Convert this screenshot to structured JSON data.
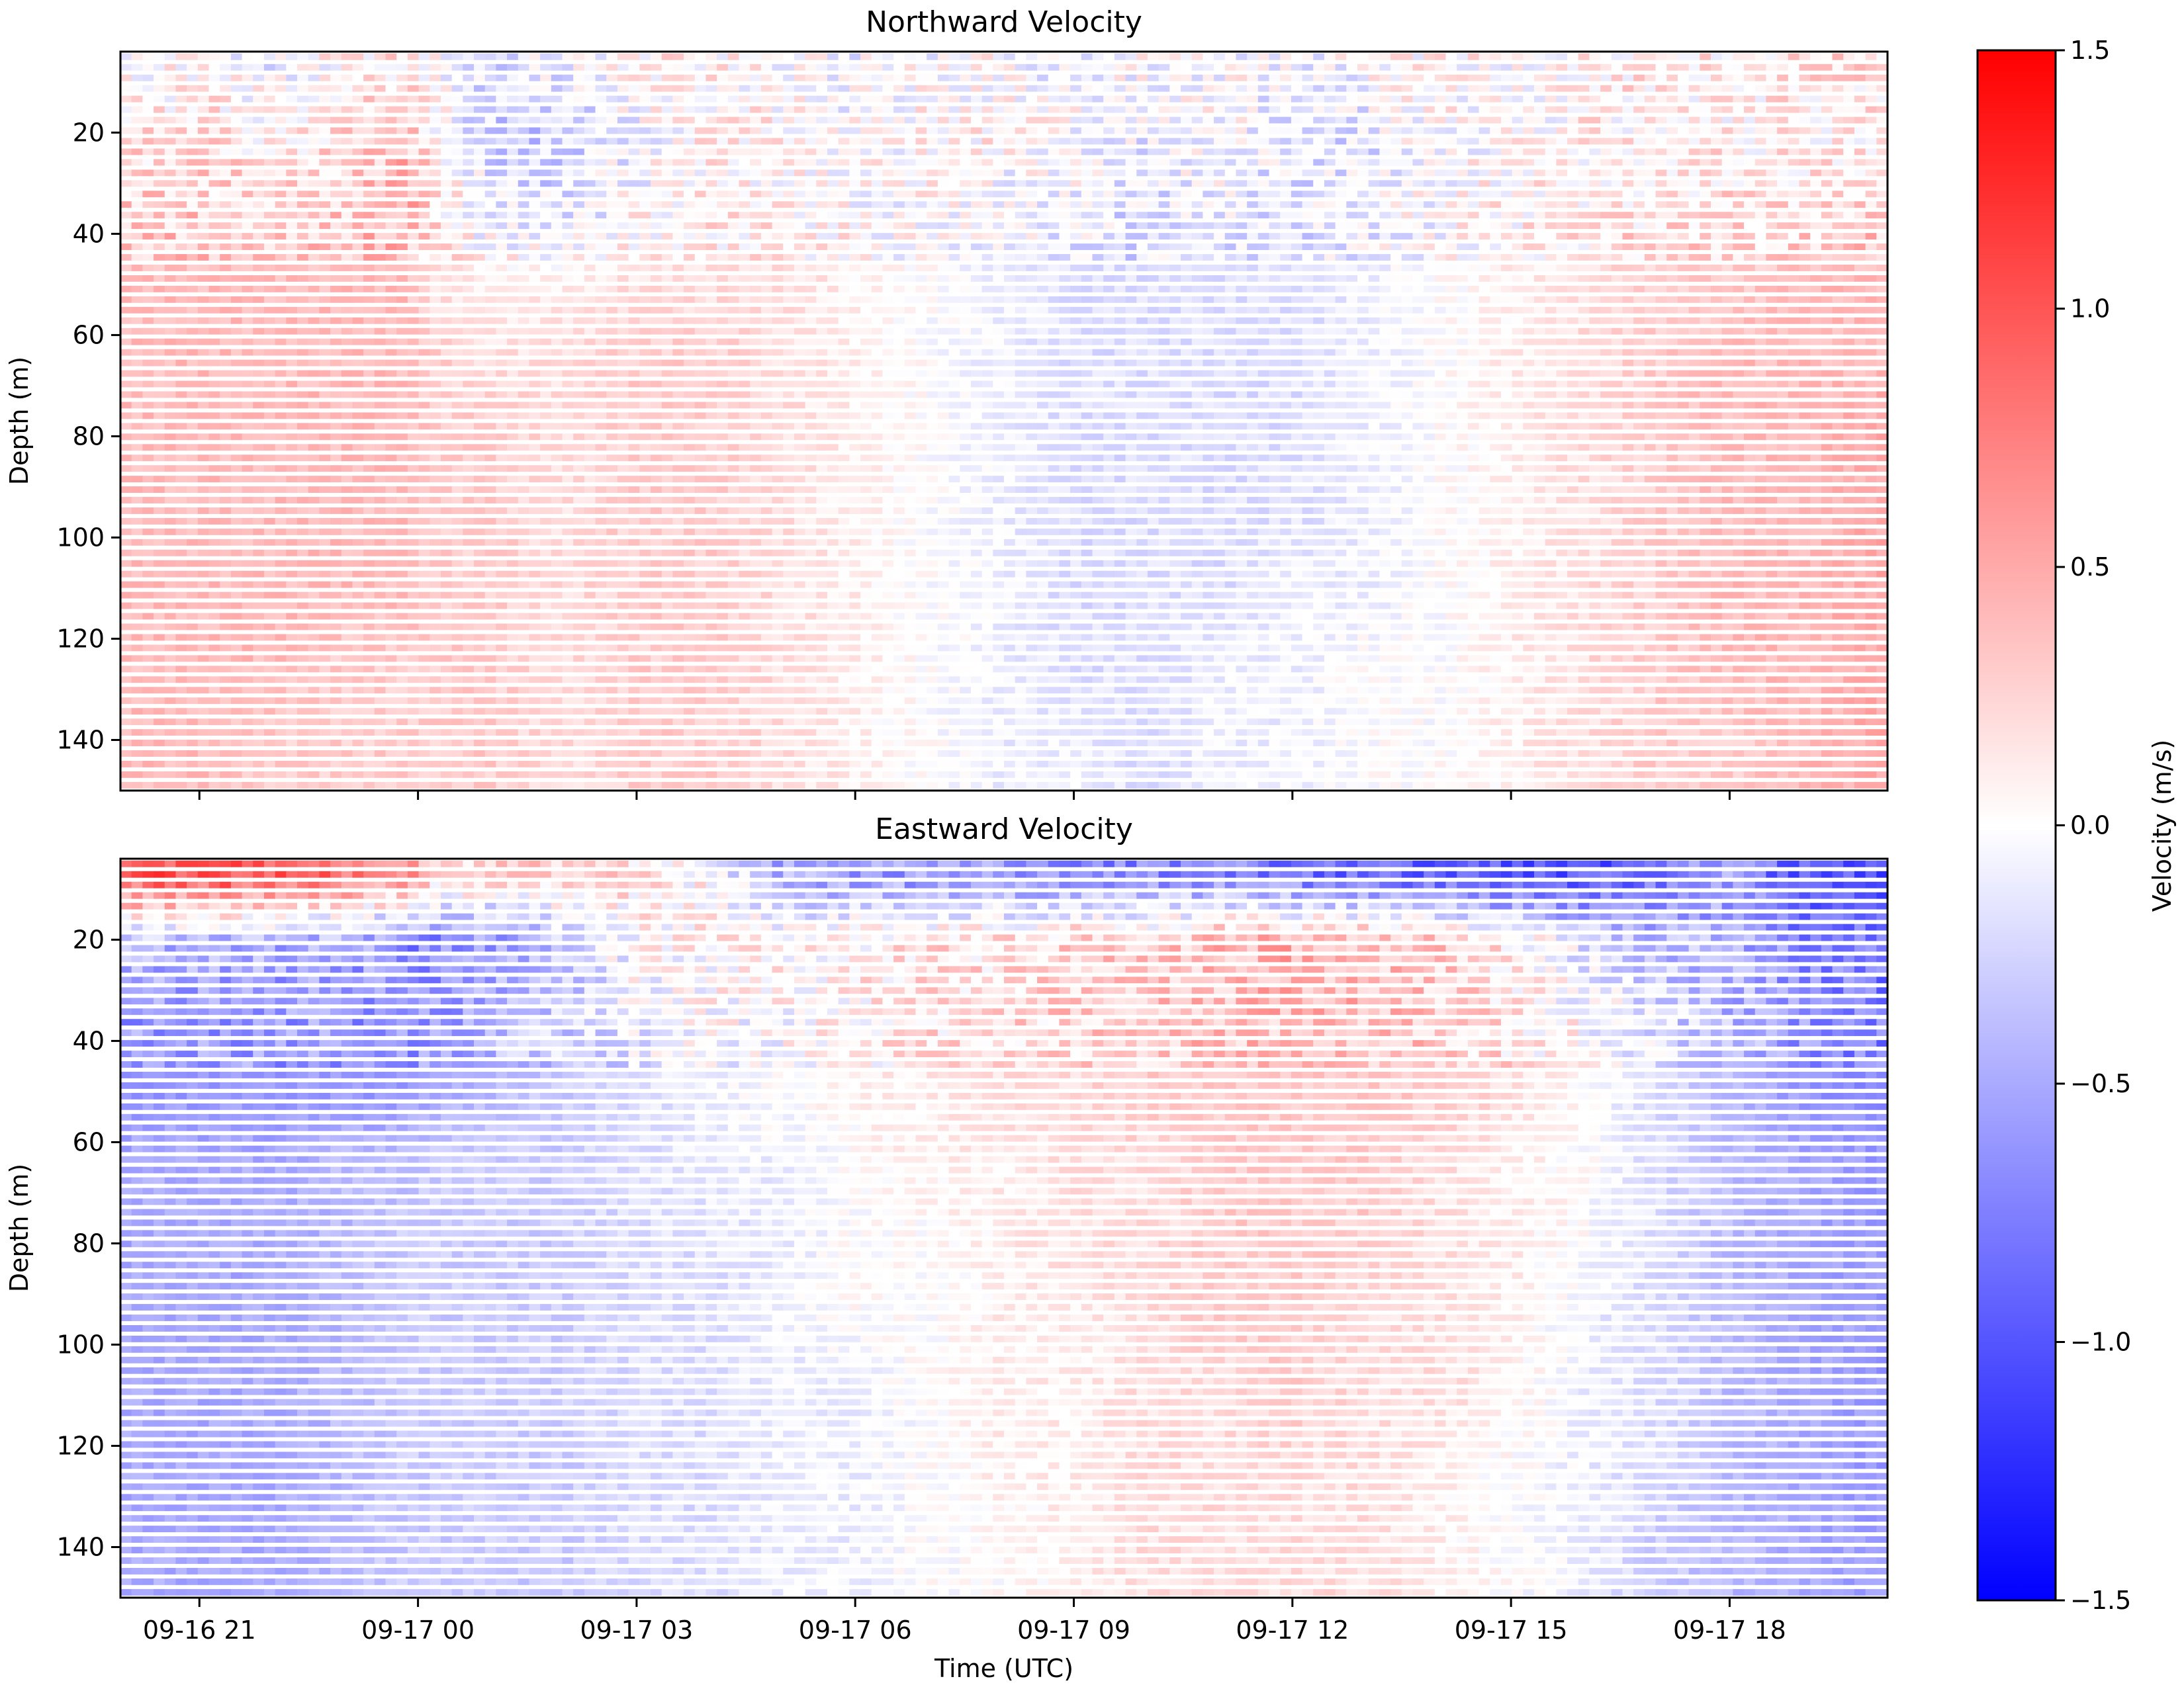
{
  "figure": {
    "xlabel": "Time (UTC)",
    "colorbar": {
      "label": "Velocity (m/s)",
      "ticks": [
        "1.5",
        "1.0",
        "0.5",
        "0.0",
        "−0.5",
        "−1.0",
        "−1.5"
      ],
      "vmin": -1.5,
      "vmax": 1.5,
      "colormap": "bwr"
    },
    "colors": {
      "negative": "#0000ff",
      "zero": "#ffffff",
      "positive": "#ff0000",
      "axis": "#000000"
    }
  },
  "chart_data": [
    {
      "type": "heatmap",
      "title": "Northward Velocity",
      "xlabel": "",
      "ylabel": "Depth (m)",
      "xlim": [
        "2023-09-16 19:55",
        "2023-09-17 20:10"
      ],
      "ylim": [
        150,
        4
      ],
      "ylim_inverted": true,
      "y_ticks": [
        20,
        40,
        60,
        80,
        100,
        120,
        140
      ],
      "x_ticks": [
        "09-16 21",
        "09-17 00",
        "09-17 03",
        "09-17 06",
        "09-17 09",
        "09-17 12",
        "09-17 15",
        "09-17 18"
      ],
      "x_ticklabels_visible": false,
      "colorbar_range": [
        -1.5,
        1.5
      ],
      "time_bin_hours": [
        20.5,
        21,
        22,
        23,
        23.85,
        24.2,
        25,
        26,
        27,
        28,
        29,
        30,
        31,
        32,
        33,
        34,
        35,
        36,
        37,
        38,
        39,
        40,
        41,
        42,
        43,
        44
      ],
      "depth_bins_m": [
        8,
        20,
        35,
        50,
        65,
        80,
        95,
        110,
        125,
        140
      ],
      "values": [
        [
          0.0,
          0.1,
          -0.1,
          0.1,
          0.2,
          0.0,
          -0.2,
          -0.1,
          0.1,
          0.1,
          0.0,
          -0.1,
          0.0,
          0.0,
          -0.1,
          0.0,
          0.0,
          -0.1,
          0.0,
          0.1,
          0.0,
          0.1,
          0.2,
          0.1,
          0.2,
          0.2
        ],
        [
          0.2,
          0.2,
          0.1,
          0.2,
          0.4,
          0.1,
          -0.3,
          -0.3,
          -0.1,
          0.1,
          0.1,
          0.0,
          0.1,
          0.1,
          0.0,
          -0.1,
          0.0,
          -0.2,
          -0.2,
          0.0,
          0.0,
          0.1,
          0.1,
          0.1,
          0.1,
          0.1
        ],
        [
          0.3,
          0.3,
          0.3,
          0.3,
          0.5,
          0.2,
          -0.1,
          -0.2,
          0.0,
          0.1,
          0.1,
          0.0,
          0.0,
          -0.1,
          -0.1,
          -0.2,
          -0.1,
          -0.2,
          -0.1,
          0.0,
          0.1,
          0.1,
          0.2,
          0.2,
          0.2,
          0.3
        ],
        [
          0.4,
          0.4,
          0.4,
          0.4,
          0.4,
          0.2,
          0.1,
          0.1,
          0.2,
          0.2,
          0.2,
          0.1,
          0.0,
          -0.1,
          -0.2,
          -0.2,
          -0.2,
          -0.2,
          -0.1,
          0.0,
          0.1,
          0.2,
          0.3,
          0.3,
          0.4,
          0.4
        ],
        [
          0.4,
          0.4,
          0.4,
          0.4,
          0.4,
          0.3,
          0.2,
          0.2,
          0.3,
          0.3,
          0.2,
          0.1,
          0.0,
          -0.1,
          -0.2,
          -0.2,
          -0.2,
          -0.2,
          -0.1,
          0.0,
          0.1,
          0.2,
          0.3,
          0.4,
          0.4,
          0.4
        ],
        [
          0.4,
          0.4,
          0.4,
          0.4,
          0.4,
          0.3,
          0.3,
          0.2,
          0.3,
          0.3,
          0.2,
          0.1,
          0.0,
          -0.1,
          -0.2,
          -0.2,
          -0.2,
          -0.2,
          -0.1,
          0.0,
          0.1,
          0.2,
          0.3,
          0.4,
          0.4,
          0.5
        ],
        [
          0.4,
          0.4,
          0.4,
          0.4,
          0.4,
          0.3,
          0.3,
          0.2,
          0.3,
          0.3,
          0.2,
          0.1,
          0.0,
          -0.1,
          -0.2,
          -0.2,
          -0.2,
          -0.2,
          -0.1,
          0.0,
          0.1,
          0.2,
          0.3,
          0.4,
          0.4,
          0.5
        ],
        [
          0.4,
          0.4,
          0.4,
          0.4,
          0.4,
          0.3,
          0.3,
          0.2,
          0.3,
          0.3,
          0.2,
          0.1,
          0.0,
          -0.1,
          -0.2,
          -0.2,
          -0.2,
          -0.1,
          -0.1,
          0.0,
          0.1,
          0.2,
          0.3,
          0.4,
          0.4,
          0.5
        ],
        [
          0.4,
          0.4,
          0.4,
          0.3,
          0.3,
          0.3,
          0.3,
          0.2,
          0.3,
          0.3,
          0.2,
          0.1,
          0.0,
          -0.1,
          -0.2,
          -0.2,
          -0.1,
          -0.1,
          0.0,
          0.0,
          0.1,
          0.2,
          0.3,
          0.4,
          0.4,
          0.5
        ],
        [
          0.4,
          0.4,
          0.3,
          0.3,
          0.3,
          0.3,
          0.3,
          0.2,
          0.3,
          0.3,
          0.2,
          0.1,
          0.0,
          -0.1,
          -0.1,
          -0.2,
          -0.1,
          -0.1,
          0.0,
          0.0,
          0.1,
          0.2,
          0.3,
          0.3,
          0.4,
          0.5
        ]
      ]
    },
    {
      "type": "heatmap",
      "title": "Eastward Velocity",
      "xlabel": "Time (UTC)",
      "ylabel": "Depth (m)",
      "xlim": [
        "2023-09-16 19:55",
        "2023-09-17 20:10"
      ],
      "ylim": [
        150,
        4
      ],
      "ylim_inverted": true,
      "y_ticks": [
        20,
        40,
        60,
        80,
        100,
        120,
        140
      ],
      "x_ticks": [
        "09-16 21",
        "09-17 00",
        "09-17 03",
        "09-17 06",
        "09-17 09",
        "09-17 12",
        "09-17 15",
        "09-17 18"
      ],
      "colorbar_range": [
        -1.5,
        1.5
      ],
      "time_bin_hours": [
        20.5,
        21,
        22,
        23,
        23.85,
        24.2,
        25,
        26,
        27,
        28,
        29,
        30,
        31,
        32,
        33,
        34,
        35,
        36,
        37,
        38,
        39,
        40,
        41,
        42,
        43,
        44
      ],
      "depth_bins_m": [
        8,
        20,
        35,
        50,
        65,
        80,
        95,
        110,
        125,
        140
      ],
      "values": [
        [
          1.0,
          1.0,
          1.0,
          0.8,
          0.6,
          0.3,
          0.2,
          0.3,
          0.2,
          0.0,
          -0.5,
          -0.6,
          -0.6,
          -0.6,
          -0.7,
          -0.7,
          -0.7,
          -0.8,
          -0.9,
          -0.9,
          -1.0,
          -1.0,
          -0.8,
          -0.6,
          -1.0,
          -1.0
        ],
        [
          -0.4,
          -0.4,
          -0.5,
          -0.5,
          -0.7,
          -0.7,
          -0.6,
          -0.3,
          0.0,
          0.1,
          0.1,
          0.1,
          0.2,
          0.2,
          0.3,
          0.3,
          0.4,
          0.5,
          0.4,
          0.3,
          0.1,
          -0.2,
          -0.4,
          -0.5,
          -0.7,
          -0.8
        ],
        [
          -0.6,
          -0.6,
          -0.6,
          -0.6,
          -0.7,
          -0.6,
          -0.5,
          -0.3,
          -0.1,
          0.0,
          0.0,
          0.1,
          0.2,
          0.2,
          0.3,
          0.3,
          0.4,
          0.4,
          0.4,
          0.3,
          0.2,
          0.0,
          -0.2,
          -0.4,
          -0.6,
          -0.8
        ],
        [
          -0.6,
          -0.6,
          -0.6,
          -0.6,
          -0.6,
          -0.5,
          -0.4,
          -0.3,
          -0.2,
          -0.1,
          0.0,
          0.1,
          0.1,
          0.2,
          0.2,
          0.3,
          0.3,
          0.3,
          0.3,
          0.3,
          0.2,
          0.0,
          -0.2,
          -0.4,
          -0.6,
          -0.7
        ],
        [
          -0.5,
          -0.5,
          -0.5,
          -0.4,
          -0.4,
          -0.3,
          -0.3,
          -0.3,
          -0.2,
          -0.1,
          -0.1,
          0.0,
          0.1,
          0.1,
          0.2,
          0.2,
          0.3,
          0.3,
          0.3,
          0.2,
          0.1,
          0.0,
          -0.2,
          -0.4,
          -0.5,
          -0.6
        ],
        [
          -0.5,
          -0.5,
          -0.5,
          -0.4,
          -0.3,
          -0.3,
          -0.3,
          -0.3,
          -0.2,
          -0.2,
          -0.1,
          0.0,
          0.0,
          0.1,
          0.2,
          0.2,
          0.3,
          0.3,
          0.3,
          0.2,
          0.1,
          0.0,
          -0.2,
          -0.4,
          -0.5,
          -0.6
        ],
        [
          -0.5,
          -0.5,
          -0.5,
          -0.4,
          -0.3,
          -0.3,
          -0.3,
          -0.3,
          -0.2,
          -0.2,
          -0.1,
          0.0,
          0.0,
          0.1,
          0.1,
          0.2,
          0.3,
          0.3,
          0.2,
          0.2,
          0.1,
          -0.1,
          -0.2,
          -0.4,
          -0.5,
          -0.6
        ],
        [
          -0.5,
          -0.5,
          -0.5,
          -0.4,
          -0.3,
          -0.3,
          -0.3,
          -0.3,
          -0.2,
          -0.2,
          -0.1,
          -0.1,
          0.0,
          0.1,
          0.1,
          0.2,
          0.2,
          0.3,
          0.2,
          0.2,
          0.1,
          -0.1,
          -0.2,
          -0.4,
          -0.5,
          -0.6
        ],
        [
          -0.5,
          -0.5,
          -0.5,
          -0.4,
          -0.3,
          -0.3,
          -0.3,
          -0.3,
          -0.2,
          -0.2,
          -0.1,
          -0.1,
          0.0,
          0.1,
          0.1,
          0.2,
          0.2,
          0.2,
          0.2,
          0.1,
          0.0,
          -0.1,
          -0.2,
          -0.4,
          -0.5,
          -0.6
        ],
        [
          -0.5,
          -0.5,
          -0.5,
          -0.4,
          -0.3,
          -0.3,
          -0.3,
          -0.3,
          -0.2,
          -0.2,
          -0.1,
          -0.1,
          0.0,
          0.0,
          0.1,
          0.2,
          0.2,
          0.2,
          0.2,
          0.1,
          0.0,
          -0.1,
          -0.3,
          -0.4,
          -0.5,
          -0.6
        ]
      ]
    }
  ]
}
